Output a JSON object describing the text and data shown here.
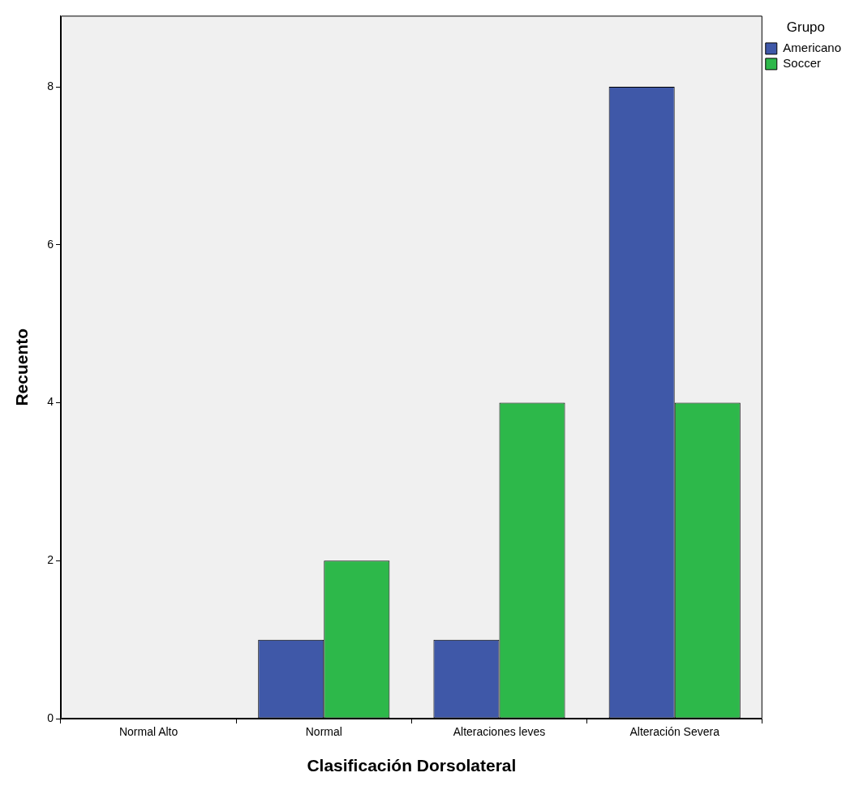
{
  "chart_data": {
    "type": "bar",
    "xlabel": "Clasificación Dorsolateral",
    "ylabel": "Recuento",
    "legend_title": "Grupo",
    "legend": "top right",
    "categories": [
      "Normal Alto",
      "Normal",
      "Alteraciones leves",
      "Alteración Severa"
    ],
    "series": [
      {
        "name": "Americano",
        "color": "#3f58a8",
        "values": [
          0,
          1,
          1,
          8
        ]
      },
      {
        "name": "Soccer",
        "color": "#2db84a",
        "values": [
          0,
          2,
          4,
          4
        ]
      }
    ],
    "ylim": [
      0,
      8.9
    ],
    "yticks": [
      0,
      2,
      4,
      6,
      8
    ]
  }
}
